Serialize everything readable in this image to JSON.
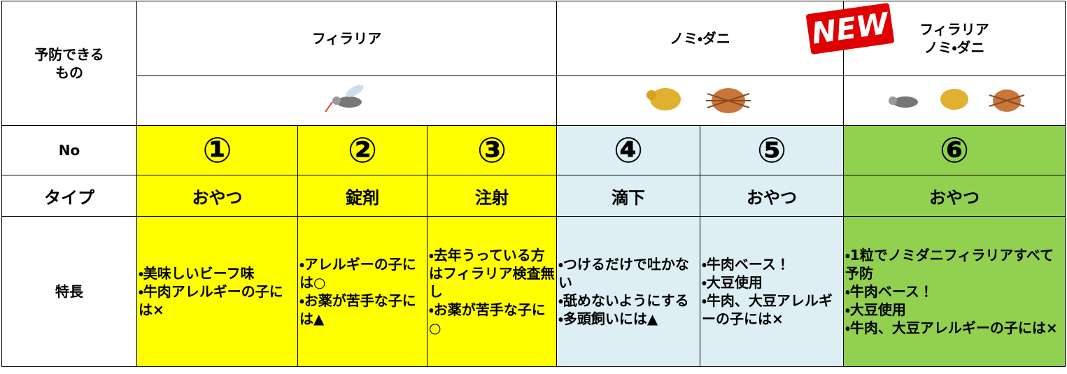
{
  "header": {
    "label_lines": [
      "予防できる",
      "もの"
    ],
    "groups": [
      {
        "lines": [
          "フィラリア"
        ]
      },
      {
        "lines": [
          "ノミ・ダニ"
        ]
      },
      {
        "lines": [
          "フィラリア",
          "ノミ・ダニ"
        ],
        "badge": "NEW"
      }
    ]
  },
  "table": {
    "row_labels": [
      "No",
      "タイプ",
      "特長"
    ],
    "columns": [
      {
        "no": "①",
        "type": "おやつ",
        "features": [
          "・美味しいビーフ味",
          "・牛肉アレルギーの子には×"
        ]
      },
      {
        "no": "②",
        "type": "錠剤",
        "features": [
          "・アレルギーの子には○",
          "・お薬が苦手な子には▲"
        ]
      },
      {
        "no": "③",
        "type": "注射",
        "features": [
          "・去年うっている方はフィラリア検査無し",
          "・お薬が苦手な子に○"
        ]
      },
      {
        "no": "④",
        "type": "滴下",
        "features": [
          "・つけるだけで吐かない",
          "・舐めないようにする",
          "・多頭飼いには▲"
        ]
      },
      {
        "no": "⑤",
        "type": "おやつ",
        "features": [
          "・牛肉ベース！",
          "・大豆使用",
          "・牛肉、大豆アレルギーの子には×"
        ]
      },
      {
        "no": "⑥",
        "type": "おやつ",
        "features": [
          "・1粒でノミダニフィラリアすべて予防",
          "・牛肉ベース！",
          "・大豆使用",
          "・牛肉、大豆アレルギーの子には×"
        ]
      }
    ]
  }
}
